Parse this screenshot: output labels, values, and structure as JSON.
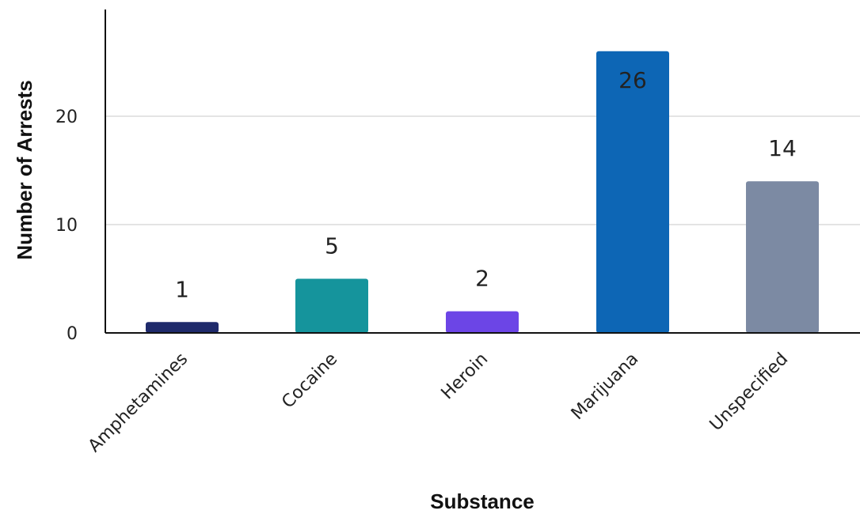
{
  "chart_data": {
    "type": "bar",
    "title": "",
    "xlabel": "Substance",
    "ylabel": "Number of Arrests",
    "categories": [
      "Amphetamines",
      "Cocaine",
      "Heroin",
      "Marijuana",
      "Unspecified"
    ],
    "values": [
      1,
      5,
      2,
      26,
      14
    ],
    "data_labels": [
      "1",
      "5",
      "2",
      "26",
      "14"
    ],
    "colors": [
      "#1f2a6b",
      "#15949c",
      "#6c45e6",
      "#0d66b5",
      "#7c8aa3"
    ],
    "yticks": [
      0,
      10,
      20
    ],
    "ylim": [
      0,
      29
    ],
    "grid": true,
    "legend": "none"
  }
}
